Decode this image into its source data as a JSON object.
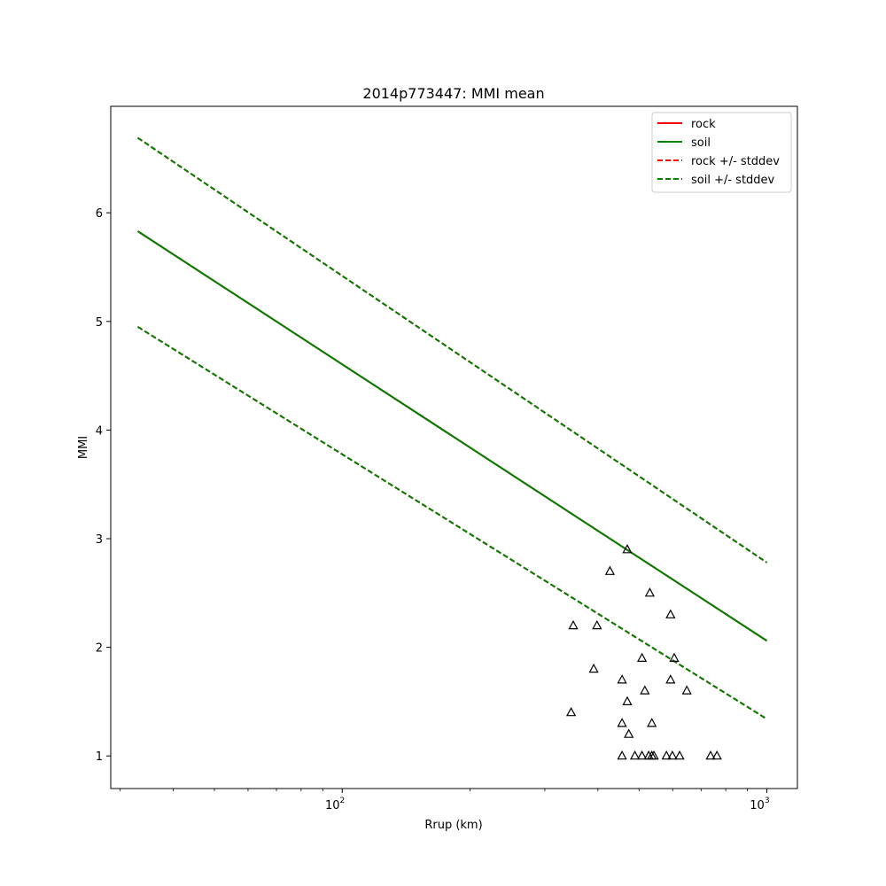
{
  "chart_data": {
    "type": "line",
    "title": "2014p773447: MMI mean",
    "xlabel": "Rrup (km)",
    "ylabel": "MMI",
    "xscale": "log",
    "xlim": [
      28.5,
      1180
    ],
    "ylim": [
      0.7,
      6.98
    ],
    "x_major_ticks": [
      {
        "value": 100,
        "base": "10",
        "exp": "2"
      },
      {
        "value": 1000,
        "base": "10",
        "exp": "3"
      }
    ],
    "x_minor_ticks": [
      30,
      40,
      50,
      60,
      70,
      80,
      90,
      200,
      300,
      400,
      500,
      600,
      700,
      800,
      900
    ],
    "y_ticks": [
      1,
      2,
      3,
      4,
      5,
      6
    ],
    "legend_position": "top-right",
    "grid": false,
    "series": [
      {
        "name": "rock",
        "style": "solid",
        "color": "#ff0000",
        "x": [
          33,
          1000
        ],
        "y": [
          5.83,
          2.06
        ]
      },
      {
        "name": "soil",
        "style": "solid",
        "color": "#008000",
        "x": [
          33,
          1000
        ],
        "y": [
          5.83,
          2.06
        ]
      },
      {
        "name": "rock +/- stddev",
        "style": "dashed",
        "color": "#ff0000",
        "x": [
          33,
          1000
        ],
        "y_upper": [
          6.69,
          2.78
        ],
        "y_lower": [
          4.95,
          1.34
        ]
      },
      {
        "name": "soil +/- stddev",
        "style": "dashed",
        "color": "#008000",
        "x": [
          33,
          1000
        ],
        "y_upper": [
          6.69,
          2.78
        ],
        "y_lower": [
          4.95,
          1.34
        ]
      }
    ],
    "observations": {
      "marker": "triangle",
      "color": "#000000",
      "points": [
        {
          "x": 469,
          "y": 2.9
        },
        {
          "x": 427,
          "y": 2.7
        },
        {
          "x": 530,
          "y": 2.5
        },
        {
          "x": 593,
          "y": 2.3
        },
        {
          "x": 350,
          "y": 2.2
        },
        {
          "x": 398,
          "y": 2.2
        },
        {
          "x": 508,
          "y": 1.9
        },
        {
          "x": 605,
          "y": 1.9
        },
        {
          "x": 391,
          "y": 1.8
        },
        {
          "x": 456,
          "y": 1.7
        },
        {
          "x": 593,
          "y": 1.7
        },
        {
          "x": 516,
          "y": 1.6
        },
        {
          "x": 648,
          "y": 1.6
        },
        {
          "x": 469,
          "y": 1.5
        },
        {
          "x": 346,
          "y": 1.4
        },
        {
          "x": 456,
          "y": 1.3
        },
        {
          "x": 536,
          "y": 1.3
        },
        {
          "x": 473,
          "y": 1.2
        },
        {
          "x": 456,
          "y": 1.0
        },
        {
          "x": 489,
          "y": 1.0
        },
        {
          "x": 508,
          "y": 1.0
        },
        {
          "x": 527,
          "y": 1.0
        },
        {
          "x": 536,
          "y": 1.0
        },
        {
          "x": 542,
          "y": 1.0
        },
        {
          "x": 580,
          "y": 1.0
        },
        {
          "x": 599,
          "y": 1.0
        },
        {
          "x": 623,
          "y": 1.0
        },
        {
          "x": 737,
          "y": 1.0
        },
        {
          "x": 763,
          "y": 1.0
        }
      ]
    }
  }
}
